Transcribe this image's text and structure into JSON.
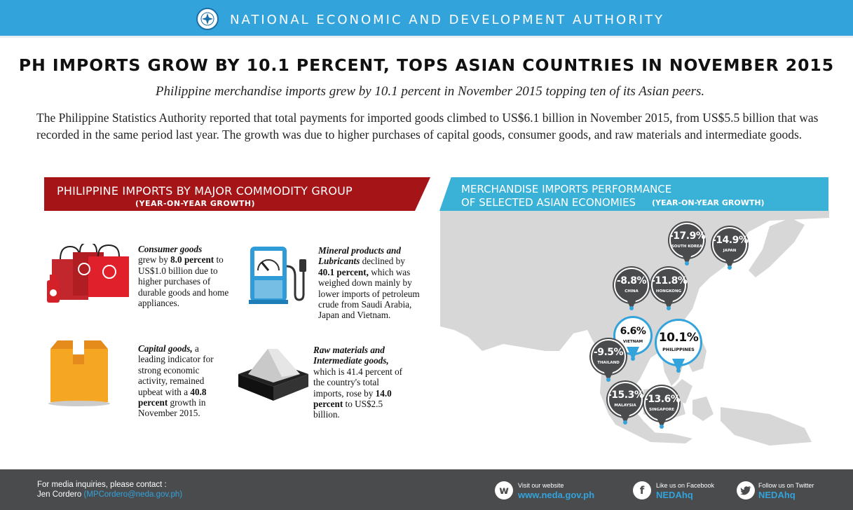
{
  "header": {
    "org_name": "NATIONAL ECONOMIC AND DEVELOPMENT AUTHORITY",
    "seal_icon": "neda-seal-icon",
    "bar_color": "#33a3dc"
  },
  "headline": "PH IMPORTS GROW BY 10.1 PERCENT, TOPS ASIAN COUNTRIES IN NOVEMBER 2015",
  "subheadline": "Philippine merchandise imports grew by 10.1 percent in November 2015 topping ten of its Asian peers.",
  "intro": "The Philippine Statistics Authority reported that total payments for imported goods climbed to US$6.1 billion in November 2015, from US$5.5 billion that was recorded in the same period last year. The growth was due to higher purchases of capital goods, consumer goods, and raw materials and intermediate goods.",
  "left_section": {
    "title": "PHILIPPINE IMPORTS BY MAJOR COMMODITY GROUP",
    "subtitle": "(YEAR-ON-YEAR GROWTH)",
    "band_color": "#a51416",
    "items": [
      {
        "icon": "shopping-bags-icon",
        "name": "Consumer goods",
        "p1": "grew by ",
        "figure": "8.0 percent",
        "p2": " to US$1.0 billion due to higher purchases of durable goods and home appliances."
      },
      {
        "icon": "fuel-pump-icon",
        "name": "Mineral products and Lubricants",
        "p1": " declined by ",
        "figure": "40.1 percent,",
        "p2": " which was weighed down mainly by lower imports of petroleum crude from Saudi Arabia, Japan and Vietnam."
      },
      {
        "icon": "box-icon",
        "name": "Capital goods,",
        "p1": " a leading indicator for strong economic activity, remained upbeat with a ",
        "figure": "40.8 percent",
        "p2": " growth in November 2015."
      },
      {
        "icon": "raw-materials-pile-icon",
        "name": "Raw materials and Intermediate goods,",
        "p1": " which is 41.4 percent of the country's total imports, rose by ",
        "figure": "14.0 percent",
        "p2": " to US$2.5 billion."
      }
    ]
  },
  "right_section": {
    "title_line1": "MERCHANDISE IMPORTS PERFORMANCE",
    "title_line2": "OF SELECTED ASIAN ECONOMIES",
    "subtitle": "(YEAR-ON-YEAR GROWTH)",
    "band_color": "#3ab1d6",
    "map_color": "#d7d7d7",
    "markers": [
      {
        "country": "SOUTH KOREA",
        "value": "-17.9%"
      },
      {
        "country": "JAPAN",
        "value": "-14.9%"
      },
      {
        "country": "CHINA",
        "value": "-8.8%"
      },
      {
        "country": "HONGKONG",
        "value": "-11.8%"
      },
      {
        "country": "VIETNAM",
        "value": "6.6%"
      },
      {
        "country": "PHILIPPINES",
        "value": "10.1%"
      },
      {
        "country": "THAILAND",
        "value": "-9.5%"
      },
      {
        "country": "MALAYSIA",
        "value": "-15.3%"
      },
      {
        "country": "SINGAPORE",
        "value": "-13.6%"
      }
    ]
  },
  "footer": {
    "contact_line1": "For media inquiries, please contact :",
    "contact_name": "Jen Cordero ",
    "contact_email": "(MPCordero@neda.gov.ph)",
    "website_label": "Visit our website",
    "website": "www.neda.gov.ph",
    "website_icon": "web-w-icon",
    "facebook_label": "Like us on Facebook",
    "facebook": "NEDAhq",
    "facebook_icon": "facebook-icon",
    "twitter_label": "Follow us on Twitter",
    "twitter": "NEDAhq",
    "twitter_icon": "twitter-bird-icon",
    "bg_color": "#4a4b4d"
  }
}
